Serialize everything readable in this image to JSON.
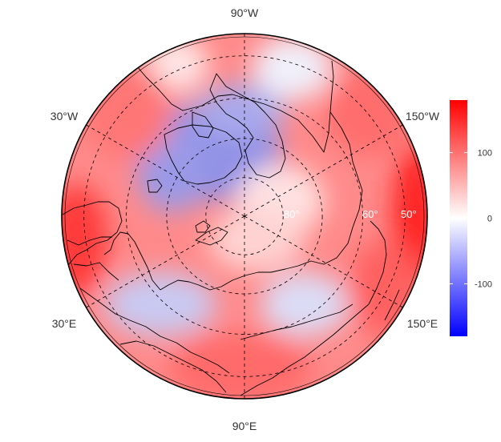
{
  "map": {
    "projection": "north polar stereographic",
    "longitude_labels": [
      {
        "key": "w90",
        "text": "90°W"
      },
      {
        "key": "w30",
        "text": "30°W"
      },
      {
        "key": "w150",
        "text": "150°W"
      },
      {
        "key": "e30",
        "text": "30°E"
      },
      {
        "key": "e150",
        "text": "150°E"
      },
      {
        "key": "e90",
        "text": "90°E"
      }
    ],
    "latitude_labels": [
      "80°",
      "60°",
      "50°"
    ],
    "latitude_circles": [
      80,
      70,
      60,
      50
    ],
    "meridians_deg": [
      -150,
      -90,
      -30,
      30,
      90,
      150
    ],
    "field": {
      "description_free": true,
      "min": -180,
      "max": 180,
      "colors": {
        "low": "#0000ff",
        "mid": "#ffffff",
        "high": "#ff0000"
      }
    }
  },
  "colorbar": {
    "ticks": [
      {
        "value": 100,
        "label": "100"
      },
      {
        "value": 0,
        "label": "0"
      },
      {
        "value": -100,
        "label": "-100"
      }
    ],
    "min": -180,
    "max": 180
  },
  "colors": {
    "coastline": "#000000",
    "graticule": "#000000",
    "frame": "#000000"
  }
}
